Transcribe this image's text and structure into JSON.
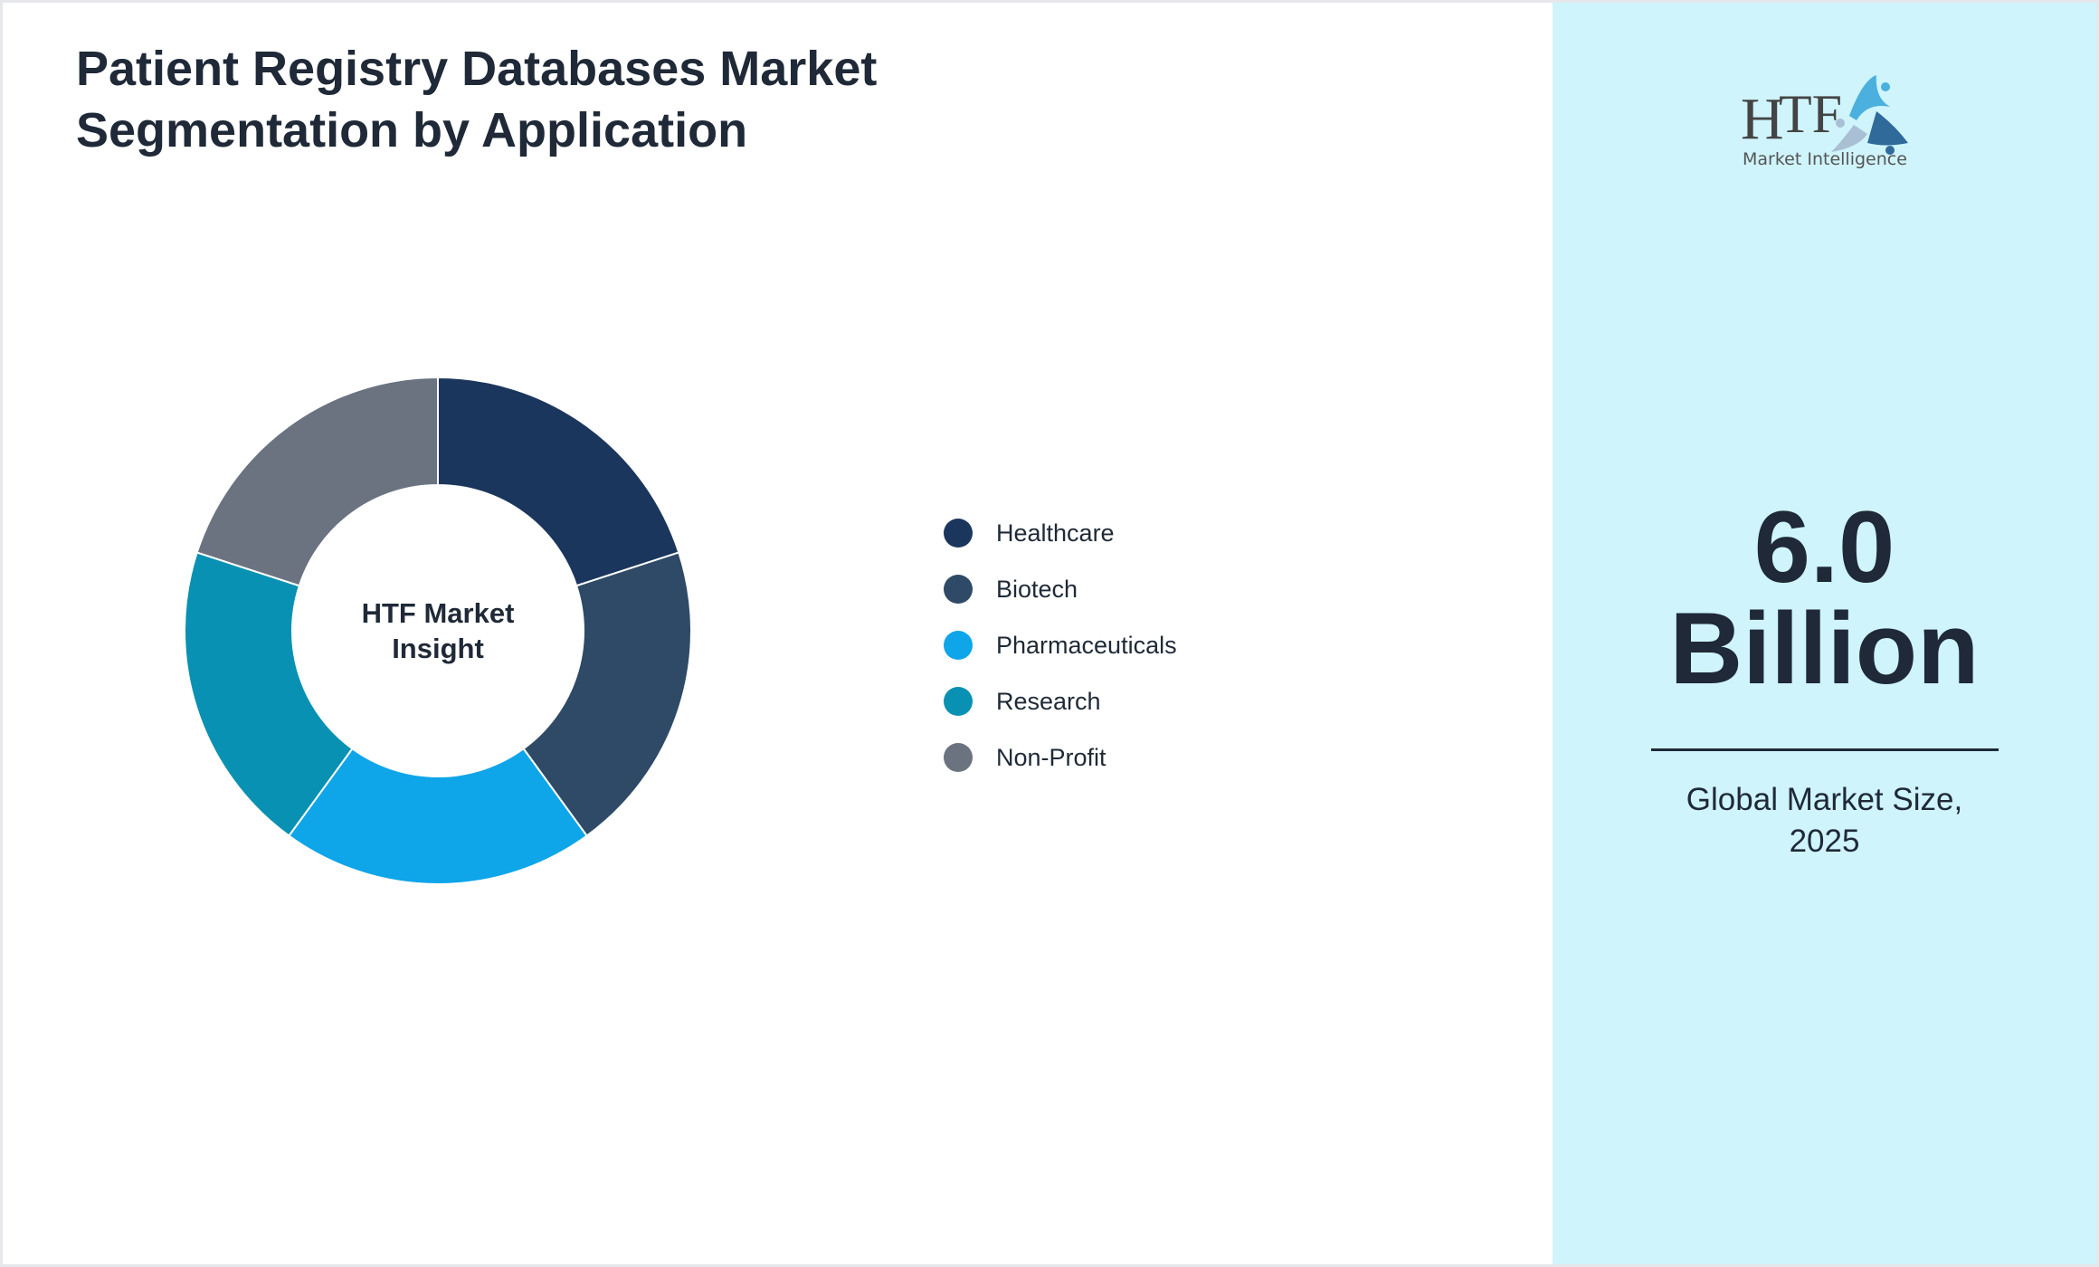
{
  "title": "Patient Registry Databases Market Segmentation by Application",
  "chart_data": {
    "type": "pie",
    "donut": true,
    "center_label": "HTF Market Insight",
    "categories": [
      "Healthcare",
      "Biotech",
      "Pharmaceuticals",
      "Research",
      "Non-Profit"
    ],
    "values": [
      20,
      20,
      20,
      20,
      20
    ],
    "colors": [
      "#1b365d",
      "#2e4a66",
      "#0ea5e9",
      "#0891b2",
      "#6b7280"
    ],
    "legend_position": "right"
  },
  "panel": {
    "logo_text": "HTF",
    "logo_subtext": "Market Intelligence",
    "value": "6.0",
    "unit": "Billion",
    "caption_line1": "Global Market Size,",
    "caption_line2": "2025",
    "background": "#cff4fc"
  }
}
